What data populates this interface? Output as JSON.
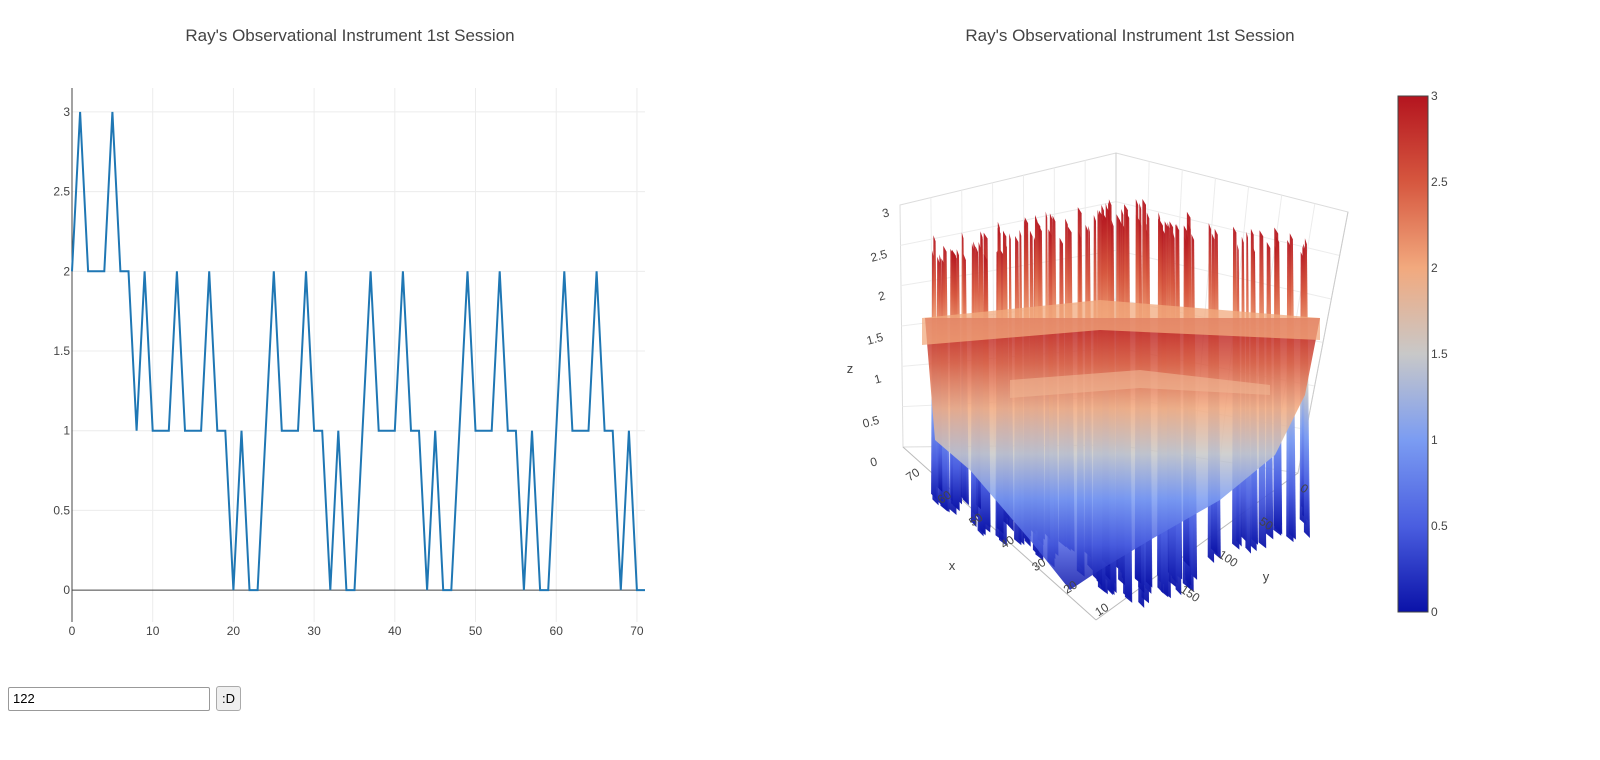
{
  "page": {
    "input_value": "122",
    "button_label": ":D"
  },
  "chart_data": [
    {
      "type": "line",
      "title": "Ray's Observational Instrument 1st Session",
      "xlim": [
        0,
        71
      ],
      "ylim": [
        -0.2,
        3.15
      ],
      "x_ticks": [
        0,
        10,
        20,
        30,
        40,
        50,
        60,
        70
      ],
      "y_ticks": [
        0,
        0.5,
        1,
        1.5,
        2,
        2.5,
        3
      ],
      "grid": true,
      "color": "#1f77b4",
      "x": [
        0,
        1,
        2,
        3,
        4,
        5,
        6,
        7,
        8,
        9,
        10,
        11,
        12,
        13,
        14,
        15,
        16,
        17,
        18,
        19,
        20,
        21,
        22,
        23,
        24,
        25,
        26,
        27,
        28,
        29,
        30,
        31,
        32,
        33,
        34,
        35,
        36,
        37,
        38,
        39,
        40,
        41,
        42,
        43,
        44,
        45,
        46,
        47,
        48,
        49,
        50,
        51,
        52,
        53,
        54,
        55,
        56,
        57,
        58,
        59,
        60,
        61,
        62,
        63,
        64,
        65,
        66,
        67,
        68,
        69,
        70,
        71
      ],
      "y": [
        2,
        3,
        2,
        2,
        2,
        3,
        2,
        2,
        1,
        2,
        1,
        1,
        1,
        2,
        1,
        1,
        1,
        2,
        1,
        1,
        0,
        1,
        0,
        0,
        1,
        2,
        1,
        1,
        1,
        2,
        1,
        1,
        0,
        1,
        0,
        0,
        1,
        2,
        1,
        1,
        1,
        2,
        1,
        1,
        0,
        1,
        0,
        0,
        1,
        2,
        1,
        1,
        1,
        2,
        1,
        1,
        0,
        1,
        0,
        0,
        1,
        2,
        1,
        1,
        1,
        2,
        1,
        1,
        0,
        1,
        0,
        0
      ]
    },
    {
      "type": "surface",
      "title": "Ray's Observational Instrument 1st Session",
      "x_axis_label": "x",
      "y_axis_label": "y",
      "z_axis_label": "z",
      "x_ticks": [
        10,
        20,
        30,
        40,
        50,
        60,
        70
      ],
      "y_ticks": [
        0,
        50,
        100,
        150
      ],
      "z_ticks": [
        0,
        0.5,
        1,
        1.5,
        2,
        2.5,
        3
      ],
      "zlim": [
        0,
        3
      ],
      "colorscale": [
        "#0a12a8",
        "#4a5ee0",
        "#7b9cf2",
        "#c8c8c8",
        "#f2a97e",
        "#d6573f",
        "#b4151f"
      ],
      "colorbar_ticks": [
        0,
        0.5,
        1,
        1.5,
        2,
        2.5,
        3
      ]
    }
  ]
}
